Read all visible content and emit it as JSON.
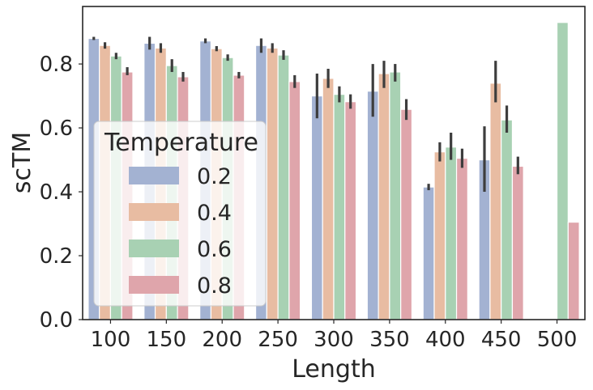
{
  "chart_data": {
    "type": "bar",
    "title": "",
    "xlabel": "Length",
    "ylabel": "scTM",
    "ylim": [
      0,
      0.98
    ],
    "yticks": [
      "0.0",
      "0.2",
      "0.4",
      "0.6",
      "0.8"
    ],
    "grid": false,
    "categories": [
      "100",
      "150",
      "200",
      "250",
      "300",
      "350",
      "400",
      "450",
      "500"
    ],
    "legend": {
      "title": "Temperature",
      "placement": "center-left"
    },
    "series": [
      {
        "name": "0.2",
        "color": "#a3b2d2",
        "values": [
          0.88,
          0.865,
          0.872,
          0.858,
          0.7,
          0.715,
          0.415,
          0.5,
          null
        ],
        "err_low": [
          0.875,
          0.845,
          0.865,
          0.835,
          0.63,
          0.635,
          0.405,
          0.4,
          null
        ],
        "err_high": [
          0.885,
          0.885,
          0.88,
          0.88,
          0.77,
          0.8,
          0.425,
          0.605,
          null
        ]
      },
      {
        "name": "0.4",
        "color": "#e8bca2",
        "values": [
          0.858,
          0.85,
          0.848,
          0.85,
          0.755,
          0.77,
          0.525,
          0.74,
          null
        ],
        "err_low": [
          0.848,
          0.835,
          0.84,
          0.835,
          0.725,
          0.725,
          0.495,
          0.68,
          null
        ],
        "err_high": [
          0.868,
          0.865,
          0.856,
          0.865,
          0.785,
          0.81,
          0.555,
          0.81,
          null
        ]
      },
      {
        "name": "0.6",
        "color": "#a8d1b3",
        "values": [
          0.825,
          0.795,
          0.82,
          0.828,
          0.705,
          0.775,
          0.54,
          0.625,
          0.93
        ],
        "err_low": [
          0.815,
          0.775,
          0.81,
          0.813,
          0.68,
          0.745,
          0.5,
          0.585,
          null
        ],
        "err_high": [
          0.835,
          0.815,
          0.83,
          0.843,
          0.73,
          0.8,
          0.585,
          0.67,
          null
        ]
      },
      {
        "name": "0.8",
        "color": "#dfa5ab",
        "values": [
          0.775,
          0.76,
          0.765,
          0.745,
          0.682,
          0.658,
          0.505,
          0.48,
          0.305
        ],
        "err_low": [
          0.765,
          0.745,
          0.755,
          0.725,
          0.66,
          0.625,
          0.475,
          0.455,
          null
        ],
        "err_high": [
          0.79,
          0.775,
          0.775,
          0.765,
          0.705,
          0.69,
          0.535,
          0.51,
          null
        ]
      }
    ]
  }
}
